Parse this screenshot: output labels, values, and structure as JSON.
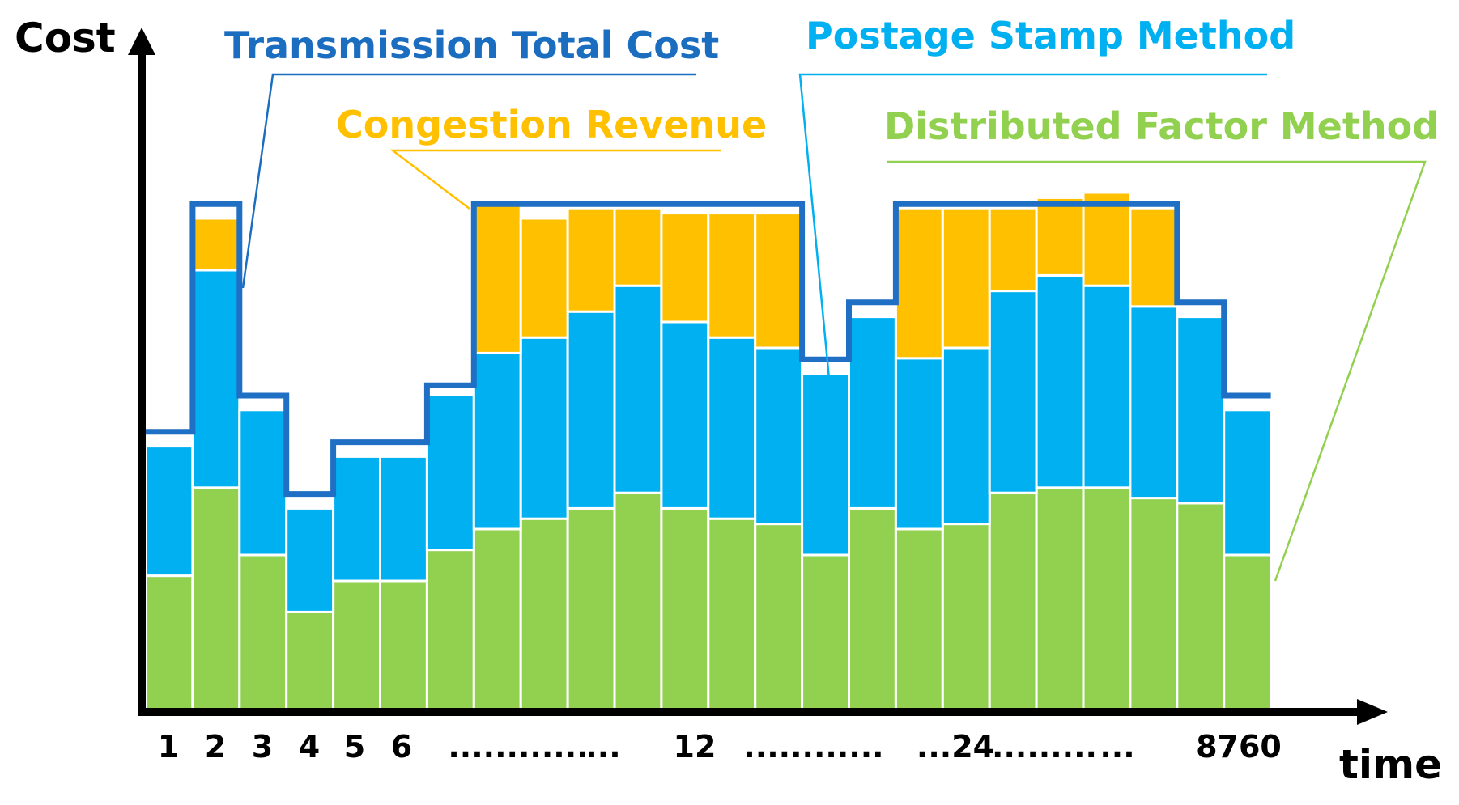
{
  "chart_data": {
    "type": "bar",
    "stacked": true,
    "title": "",
    "ylabel": "Cost",
    "xlabel": "time",
    "ylim": [
      0,
      100
    ],
    "tick_labels": [
      "1",
      "2",
      "3",
      "4",
      "5",
      "6",
      "............",
      "...",
      "12",
      "............",
      "...24",
      ".........",
      "...",
      "8760"
    ],
    "series": [
      {
        "name": "Distributed Factor Method",
        "color": "#92d050",
        "values": [
          26,
          43,
          30,
          19,
          25,
          25,
          31,
          35,
          37,
          39,
          42,
          39,
          37,
          36,
          30,
          39,
          35,
          36,
          42,
          43,
          43,
          41,
          40,
          30
        ]
      },
      {
        "name": "Postage Stamp Method",
        "color": "#00b0f0",
        "values": [
          25,
          42,
          28,
          20,
          24,
          24,
          30,
          34,
          35,
          38,
          40,
          36,
          35,
          34,
          35,
          37,
          33,
          34,
          39,
          41,
          39,
          37,
          36,
          28
        ]
      },
      {
        "name": "Congestion Revenue",
        "color": "#ffc000",
        "values": [
          0,
          10,
          0,
          0,
          0,
          0,
          0,
          29,
          23,
          20,
          15,
          21,
          24,
          26,
          0,
          0,
          29,
          27,
          16,
          15,
          18,
          19,
          0,
          0
        ]
      }
    ],
    "totals_line": {
      "name": "Transmission Total Cost",
      "color": "#1f6fc4",
      "values": [
        53,
        97,
        60,
        41,
        51,
        51,
        62,
        97,
        97,
        97,
        97,
        97,
        97,
        97,
        67,
        78,
        97,
        97,
        97,
        97,
        97,
        97,
        78,
        60
      ]
    },
    "legend": [
      {
        "name": "Transmission Total Cost",
        "color": "#1a6dbf"
      },
      {
        "name": "Postage Stamp Method",
        "color": "#00b0f0"
      },
      {
        "name": "Congestion Revenue",
        "color": "#ffc000"
      },
      {
        "name": "Distributed Factor Method",
        "color": "#92d050"
      }
    ]
  }
}
